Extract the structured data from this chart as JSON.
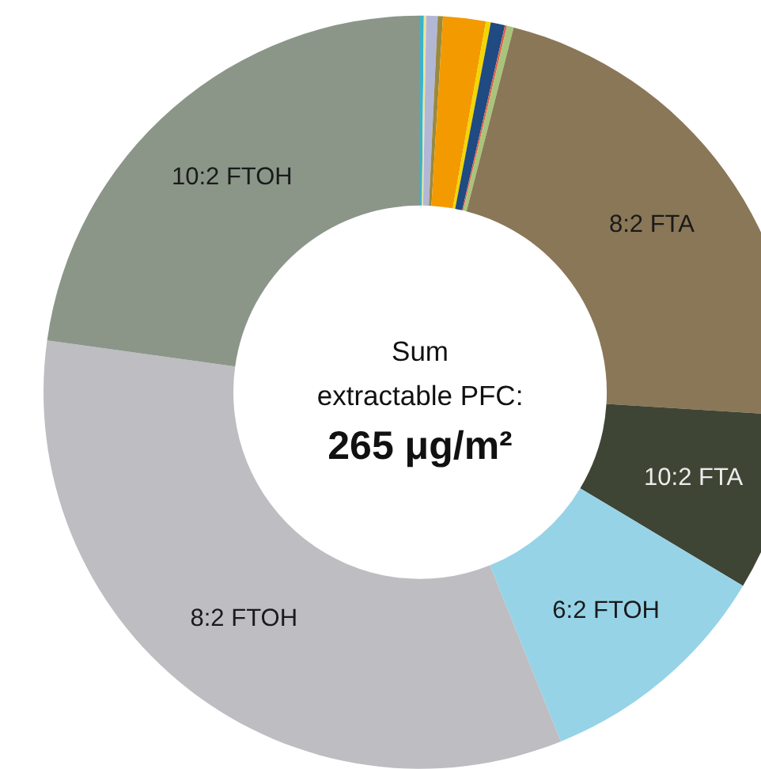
{
  "chart_data": {
    "type": "donut",
    "categories": [
      null,
      null,
      null,
      null,
      null,
      null,
      null,
      null,
      null,
      "8:2 FTA",
      "10:2 FTA",
      "6:2 FTOH",
      "8:2 FTOH",
      "10:2 FTOH"
    ],
    "values": [
      0.16,
      0.1,
      0.49,
      0.22,
      1.83,
      0.21,
      0.61,
      0.09,
      0.29,
      22.0,
      7.6,
      10.3,
      33.3,
      22.8
    ],
    "colors": [
      "#36b4cc",
      "#efe29a",
      "#b3b7d6",
      "#9a8a3e",
      "#f39a00",
      "#f2d600",
      "#1f4a82",
      "#e0604a",
      "#a9c47a",
      "#8a7758",
      "#3e4535",
      "#96d3e7",
      "#bdbdc2",
      "#8b9688"
    ],
    "annotations": [
      "Sum\nextractable PFC:",
      "265 μg/m²"
    ]
  }
}
